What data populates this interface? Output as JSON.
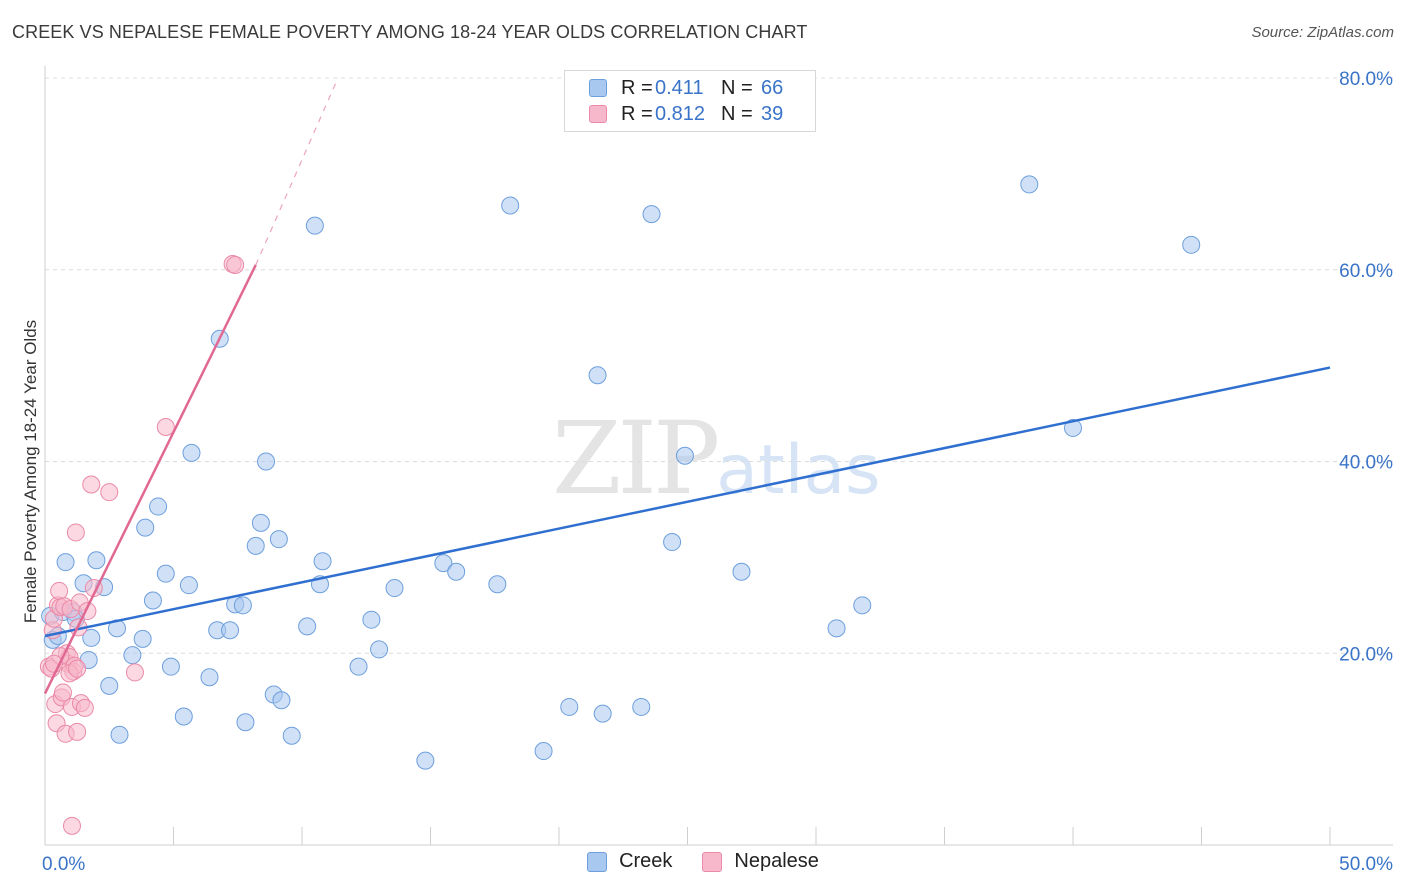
{
  "header": {
    "title": "CREEK VS NEPALESE FEMALE POVERTY AMONG 18-24 YEAR OLDS CORRELATION CHART",
    "source": "Source: ZipAtlas.com"
  },
  "legend": {
    "rows": [
      {
        "r_label": "R =",
        "r_value": "0.411",
        "n_label": "N =",
        "n_value": "66"
      },
      {
        "r_label": "R =",
        "r_value": "0.812",
        "n_label": "N =",
        "n_value": "39"
      }
    ]
  },
  "bottom_legend": {
    "creek": "Creek",
    "nepalese": "Nepalese"
  },
  "watermark": {
    "zip": "ZIP",
    "atlas": "atlas"
  },
  "colors": {
    "creek_fill": "#a9c8f0",
    "creek_stroke": "#6d9fdc",
    "creek_line": "#2f6fd0",
    "nepalese_fill": "#f7b8cb",
    "nepalese_stroke": "#ea8aa8",
    "nepalese_line": "#e06893",
    "tick_label": "#3a74c8",
    "grid": "#dcdcdc"
  },
  "chart_data": {
    "type": "scatter",
    "title": "CREEK VS NEPALESE FEMALE POVERTY AMONG 18-24 YEAR OLDS CORRELATION CHART",
    "xlabel": "",
    "ylabel": "Female Poverty Among 18-24 Year Olds",
    "xlim": [
      0,
      50
    ],
    "ylim": [
      0,
      80
    ],
    "x_tick_labels": [
      "0.0%",
      "50.0%"
    ],
    "y_ticks": [
      20,
      40,
      60,
      80
    ],
    "y_tick_labels": [
      "20.0%",
      "40.0%",
      "60.0%",
      "80.0%"
    ],
    "legend_position": "top-center",
    "series": [
      {
        "name": "Creek",
        "r": 0.411,
        "n": 66,
        "trend": {
          "x": [
            0,
            50
          ],
          "y": [
            21.8,
            49.8
          ],
          "dashed_extension": false
        },
        "points": [
          [
            0.2,
            23.9
          ],
          [
            0.3,
            21.4
          ],
          [
            0.5,
            21.8
          ],
          [
            0.7,
            24.3
          ],
          [
            0.8,
            29.5
          ],
          [
            1.1,
            24.3
          ],
          [
            1.2,
            23.6
          ],
          [
            1.5,
            27.3
          ],
          [
            1.7,
            19.3
          ],
          [
            1.8,
            21.6
          ],
          [
            2.0,
            29.7
          ],
          [
            2.3,
            26.9
          ],
          [
            2.5,
            16.6
          ],
          [
            2.8,
            22.6
          ],
          [
            2.9,
            11.5
          ],
          [
            3.4,
            19.8
          ],
          [
            3.8,
            21.5
          ],
          [
            3.9,
            33.1
          ],
          [
            4.2,
            25.5
          ],
          [
            4.4,
            35.3
          ],
          [
            4.7,
            28.3
          ],
          [
            4.9,
            18.6
          ],
          [
            5.4,
            13.4
          ],
          [
            5.6,
            27.1
          ],
          [
            5.7,
            40.9
          ],
          [
            6.4,
            17.5
          ],
          [
            6.7,
            22.4
          ],
          [
            6.8,
            52.8
          ],
          [
            7.2,
            22.4
          ],
          [
            7.4,
            25.1
          ],
          [
            7.7,
            25.0
          ],
          [
            7.8,
            12.8
          ],
          [
            8.2,
            31.2
          ],
          [
            8.4,
            33.6
          ],
          [
            8.6,
            40.0
          ],
          [
            8.9,
            15.7
          ],
          [
            9.2,
            15.1
          ],
          [
            9.1,
            31.9
          ],
          [
            9.6,
            11.4
          ],
          [
            10.2,
            22.8
          ],
          [
            10.5,
            64.6
          ],
          [
            10.7,
            27.2
          ],
          [
            10.8,
            29.6
          ],
          [
            12.2,
            18.6
          ],
          [
            12.7,
            23.5
          ],
          [
            13.0,
            20.4
          ],
          [
            13.6,
            26.8
          ],
          [
            14.8,
            8.8
          ],
          [
            15.5,
            29.4
          ],
          [
            16.0,
            28.5
          ],
          [
            17.6,
            27.2
          ],
          [
            18.1,
            66.7
          ],
          [
            19.4,
            9.8
          ],
          [
            20.4,
            14.4
          ],
          [
            21.5,
            49.0
          ],
          [
            21.7,
            13.7
          ],
          [
            23.2,
            14.4
          ],
          [
            23.6,
            65.8
          ],
          [
            24.4,
            31.6
          ],
          [
            24.9,
            40.6
          ],
          [
            27.1,
            28.5
          ],
          [
            30.8,
            22.6
          ],
          [
            31.8,
            25.0
          ],
          [
            38.3,
            68.9
          ],
          [
            40.0,
            43.5
          ],
          [
            44.6,
            62.6
          ]
        ]
      },
      {
        "name": "Nepalese",
        "r": 0.812,
        "n": 39,
        "trend": {
          "x": [
            0,
            8.2
          ],
          "y": [
            15.8,
            60.5
          ],
          "dashed_to": [
            11.4,
            80.0
          ]
        },
        "points": [
          [
            0.15,
            18.6
          ],
          [
            0.25,
            18.4
          ],
          [
            0.3,
            22.4
          ],
          [
            0.35,
            23.6
          ],
          [
            0.4,
            14.7
          ],
          [
            0.45,
            12.7
          ],
          [
            0.5,
            25.0
          ],
          [
            0.55,
            26.5
          ],
          [
            0.6,
            24.8
          ],
          [
            0.65,
            15.4
          ],
          [
            0.7,
            15.9
          ],
          [
            0.75,
            24.9
          ],
          [
            0.8,
            11.6
          ],
          [
            0.85,
            20.0
          ],
          [
            0.9,
            18.9
          ],
          [
            0.95,
            19.6
          ],
          [
            1.0,
            24.6
          ],
          [
            1.05,
            14.4
          ],
          [
            1.05,
            2.0
          ],
          [
            1.1,
            18.1
          ],
          [
            1.15,
            18.7
          ],
          [
            1.2,
            32.6
          ],
          [
            1.25,
            11.8
          ],
          [
            1.3,
            22.7
          ],
          [
            1.35,
            25.3
          ],
          [
            1.4,
            14.8
          ],
          [
            1.55,
            14.3
          ],
          [
            1.65,
            24.4
          ],
          [
            1.8,
            37.6
          ],
          [
            1.9,
            26.8
          ],
          [
            2.5,
            36.8
          ],
          [
            3.5,
            18.0
          ],
          [
            4.7,
            43.6
          ],
          [
            7.3,
            60.6
          ],
          [
            7.4,
            60.5
          ],
          [
            0.6,
            19.7
          ],
          [
            0.95,
            17.9
          ],
          [
            1.25,
            18.4
          ],
          [
            0.35,
            18.9
          ]
        ]
      }
    ]
  }
}
